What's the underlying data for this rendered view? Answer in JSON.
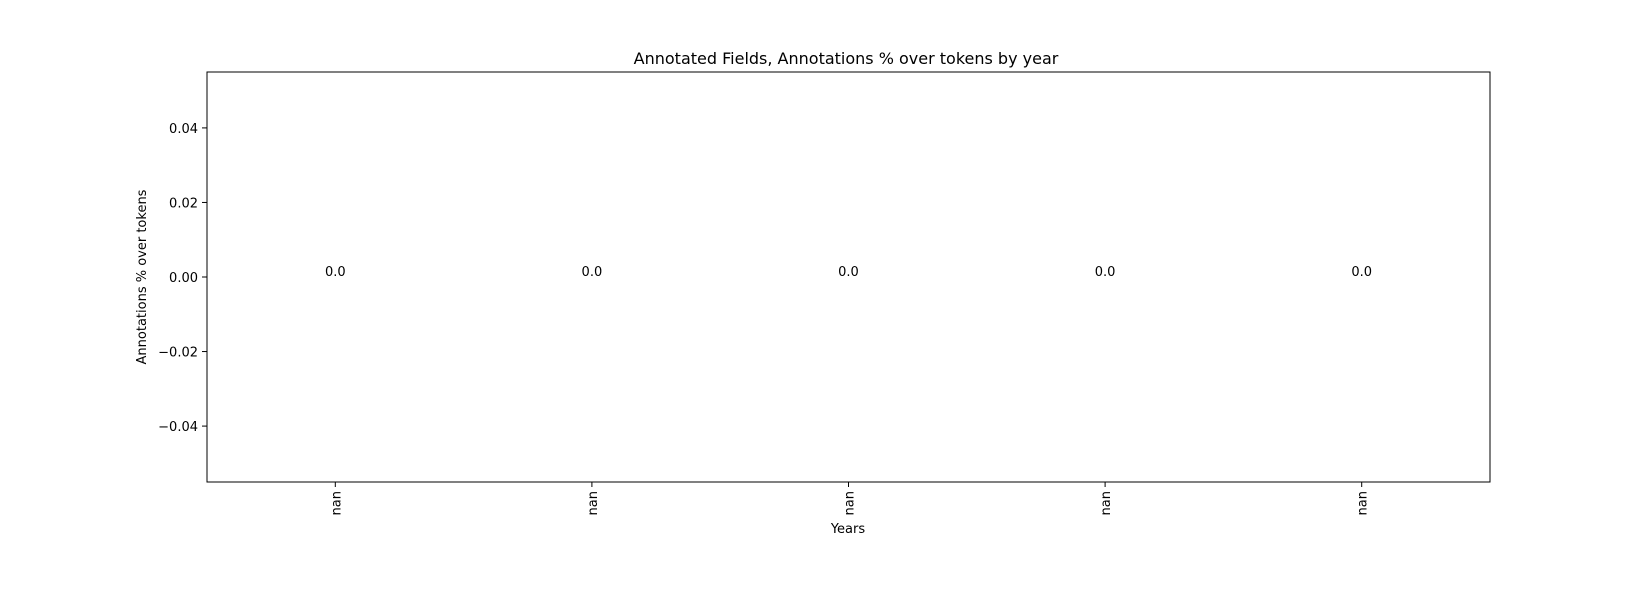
{
  "chart_data": {
    "type": "bar",
    "title": "Annotated Fields, Annotations % over tokens by year",
    "xlabel": "Years",
    "ylabel": "Annotations % over tokens",
    "categories": [
      "nan",
      "nan",
      "nan",
      "nan",
      "nan"
    ],
    "values": [
      0.0,
      0.0,
      0.0,
      0.0,
      0.0
    ],
    "value_labels": [
      "0.0",
      "0.0",
      "0.0",
      "0.0",
      "0.0"
    ],
    "ylim": [
      -0.055,
      0.055
    ],
    "yticks": [
      0.04,
      0.02,
      0.0,
      -0.02,
      -0.04
    ],
    "ytick_labels": [
      "0.04",
      "0.02",
      "0.00",
      "−0.02",
      "−0.04"
    ],
    "xtick_rotation": "vertical",
    "grid": false,
    "legend": "none",
    "colors": {
      "bar": "#1f77b4",
      "axes": "#000000",
      "text": "#000000"
    }
  }
}
